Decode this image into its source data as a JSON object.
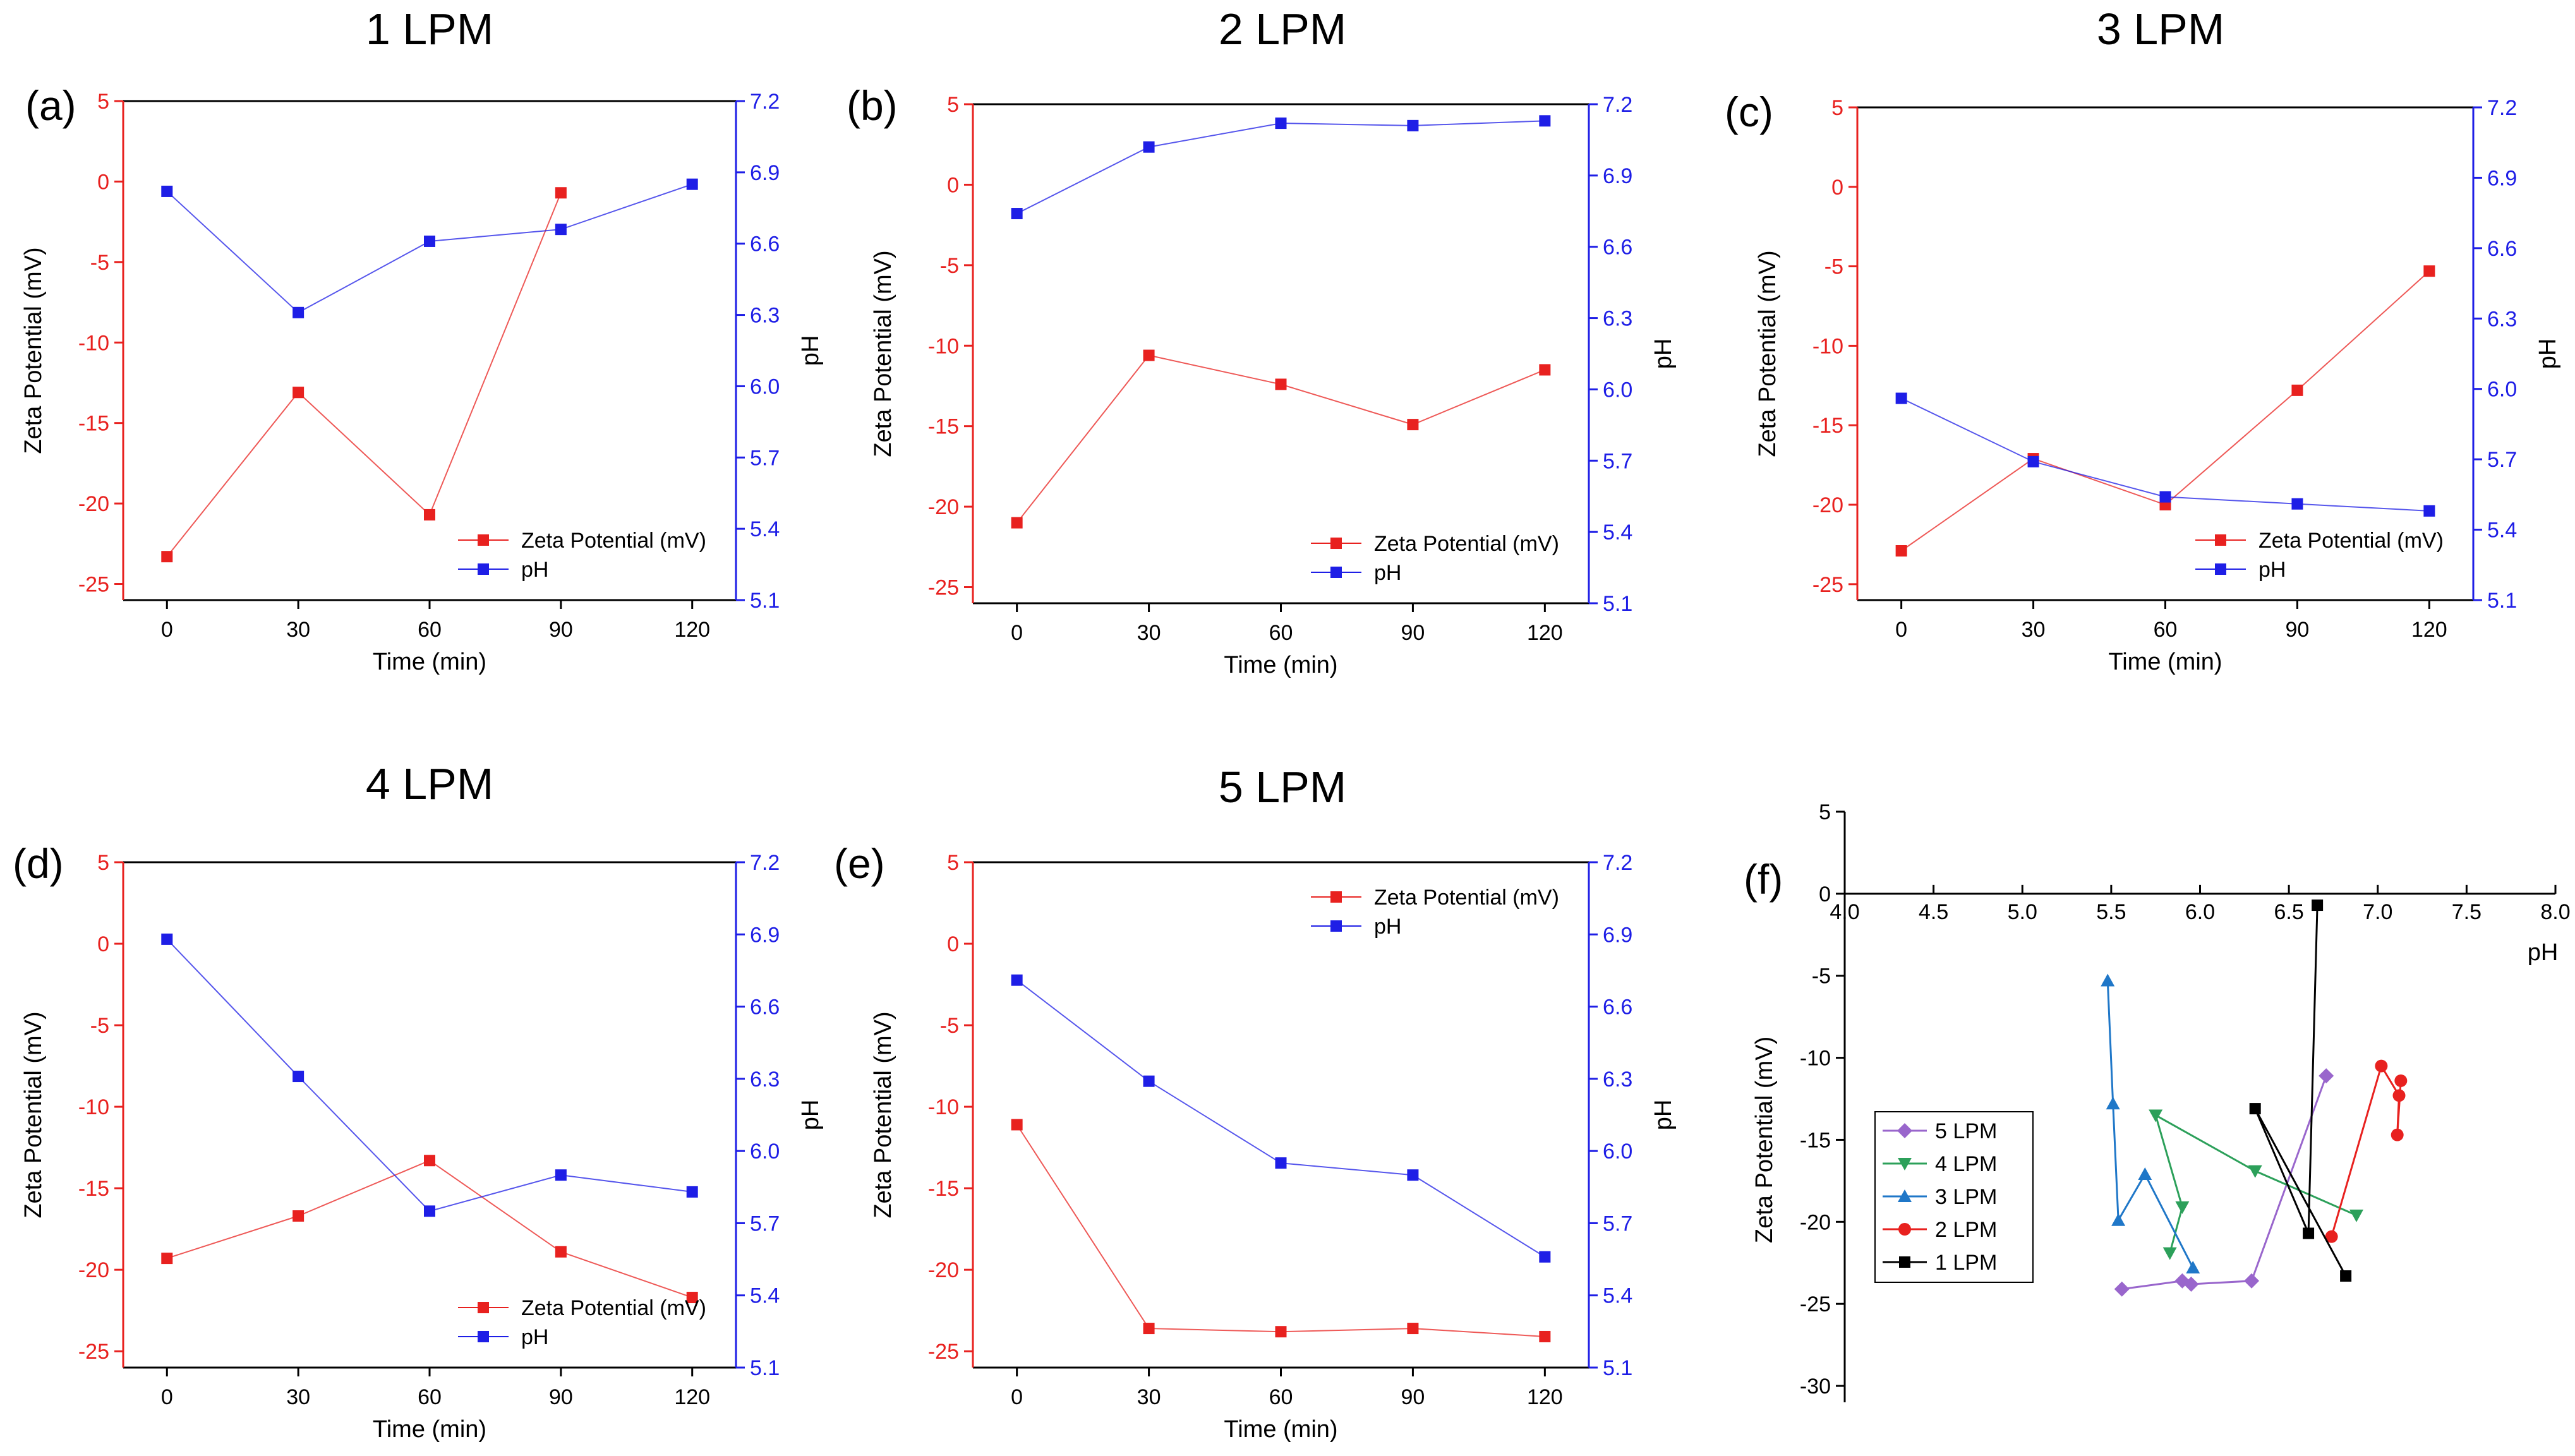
{
  "colors": {
    "zeta": "#e8211f",
    "ph": "#1e1ee6",
    "axis": "#000000",
    "lpm5": "#9966cc",
    "lpm4": "#2ca05a",
    "lpm3": "#1f77c8",
    "lpm2": "#e8211f",
    "lpm1": "#000000"
  },
  "chart_data": [
    {
      "type": "line",
      "panel_label": "(a)",
      "title": "1 LPM",
      "xlabel": "Time (min)",
      "ylabel": "Zeta Potential (mV)",
      "y2label": "pH",
      "x": [
        0,
        30,
        60,
        90,
        120
      ],
      "xlim": [
        -10,
        130
      ],
      "ylim": [
        -26,
        5
      ],
      "y2lim": [
        5.1,
        7.2
      ],
      "xticks": [
        0,
        30,
        60,
        90,
        120
      ],
      "yticks": [
        5,
        0,
        -5,
        -10,
        -15,
        -20,
        -25
      ],
      "y2ticks": [
        "7.2",
        "6.9",
        "6.6",
        "6.3",
        "6.0",
        "5.7",
        "5.4",
        "5.1"
      ],
      "series": [
        {
          "name": "Zeta Potential (mV)",
          "axis": "left",
          "values": [
            -23.3,
            -13.1,
            -20.7,
            -0.7,
            null
          ]
        },
        {
          "name": "pH",
          "axis": "right",
          "values": [
            6.82,
            6.31,
            6.61,
            6.66,
            6.85
          ]
        }
      ],
      "legend_position": "bottom-right"
    },
    {
      "type": "line",
      "panel_label": "(b)",
      "title": "2 LPM",
      "xlabel": "Time (min)",
      "ylabel": "Zeta Potential (mV)",
      "y2label": "pH",
      "x": [
        0,
        30,
        60,
        90,
        120
      ],
      "xlim": [
        -10,
        130
      ],
      "ylim": [
        -26,
        5
      ],
      "y2lim": [
        5.1,
        7.2
      ],
      "xticks": [
        0,
        30,
        60,
        90,
        120
      ],
      "yticks": [
        5,
        0,
        -5,
        -10,
        -15,
        -20,
        -25
      ],
      "y2ticks": [
        "7.2",
        "6.9",
        "6.6",
        "6.3",
        "6.0",
        "5.7",
        "5.4",
        "5.1"
      ],
      "series": [
        {
          "name": "Zeta Potential (mV)",
          "axis": "left",
          "values": [
            -21.0,
            -10.6,
            -12.4,
            -14.9,
            -11.5
          ]
        },
        {
          "name": "pH",
          "axis": "right",
          "values": [
            6.74,
            7.02,
            7.12,
            7.11,
            7.13
          ]
        }
      ],
      "legend_position": "bottom-right"
    },
    {
      "type": "line",
      "panel_label": "(c)",
      "title": "3 LPM",
      "xlabel": "Time (min)",
      "ylabel": "Zeta Potential (mV)",
      "y2label": "pH",
      "x": [
        0,
        30,
        60,
        90,
        120
      ],
      "xlim": [
        -10,
        130
      ],
      "ylim": [
        -26,
        5
      ],
      "y2lim": [
        5.1,
        7.2
      ],
      "xticks": [
        0,
        30,
        60,
        90,
        120
      ],
      "yticks": [
        5,
        0,
        -5,
        -10,
        -15,
        -20,
        -25
      ],
      "y2ticks": [
        "7.2",
        "6.9",
        "6.6",
        "6.3",
        "6.0",
        "5.7",
        "5.4",
        "5.1"
      ],
      "series": [
        {
          "name": "Zeta Potential (mV)",
          "axis": "left",
          "values": [
            -22.9,
            -17.1,
            -20.0,
            -12.8,
            -5.3
          ]
        },
        {
          "name": "pH",
          "axis": "right",
          "values": [
            5.96,
            5.69,
            5.54,
            5.51,
            5.48
          ]
        }
      ],
      "legend_position": "bottom-right"
    },
    {
      "type": "line",
      "panel_label": "(d)",
      "title": "4 LPM",
      "xlabel": "Time (min)",
      "ylabel": "Zeta Potential (mV)",
      "y2label": "pH",
      "x": [
        0,
        30,
        60,
        90,
        120
      ],
      "xlim": [
        -10,
        130
      ],
      "ylim": [
        -26,
        5
      ],
      "y2lim": [
        5.1,
        7.2
      ],
      "xticks": [
        0,
        30,
        60,
        90,
        120
      ],
      "yticks": [
        5,
        0,
        -5,
        -10,
        -15,
        -20,
        -25
      ],
      "y2ticks": [
        "7.2",
        "6.9",
        "6.6",
        "6.3",
        "6.0",
        "5.7",
        "5.4",
        "5.1"
      ],
      "series": [
        {
          "name": "Zeta Potential (mV)",
          "axis": "left",
          "values": [
            -19.3,
            -16.7,
            -13.3,
            -18.9,
            -21.7
          ]
        },
        {
          "name": "pH",
          "axis": "right",
          "values": [
            6.88,
            6.31,
            5.75,
            5.9,
            5.83
          ]
        }
      ],
      "legend_position": "bottom-right"
    },
    {
      "type": "line",
      "panel_label": "(e)",
      "title": "5 LPM",
      "xlabel": "Time (min)",
      "ylabel": "Zeta Potential (mV)",
      "y2label": "pH",
      "x": [
        0,
        30,
        60,
        90,
        120
      ],
      "xlim": [
        -10,
        130
      ],
      "ylim": [
        -26,
        5
      ],
      "y2lim": [
        5.1,
        7.2
      ],
      "xticks": [
        0,
        30,
        60,
        90,
        120
      ],
      "yticks": [
        5,
        0,
        -5,
        -10,
        -15,
        -20,
        -25
      ],
      "y2ticks": [
        "7.2",
        "6.9",
        "6.6",
        "6.3",
        "6.0",
        "5.7",
        "5.4",
        "5.1"
      ],
      "series": [
        {
          "name": "Zeta Potential (mV)",
          "axis": "left",
          "values": [
            -11.1,
            -23.6,
            -23.8,
            -23.6,
            -24.1
          ]
        },
        {
          "name": "pH",
          "axis": "right",
          "values": [
            6.71,
            6.29,
            5.95,
            5.9,
            5.56
          ]
        }
      ],
      "legend_position": "top-right"
    },
    {
      "type": "scatter",
      "panel_label": "(f)",
      "title": "",
      "xlabel": "pH",
      "ylabel": "Zeta Potential (mV)",
      "xlim": [
        4.0,
        8.0
      ],
      "ylim": [
        -31,
        5
      ],
      "xticks": [
        "4.0",
        "4.5",
        "5.0",
        "5.5",
        "6.0",
        "6.5",
        "7.0",
        "7.5",
        "8.0"
      ],
      "yticks": [
        5,
        0,
        -5,
        -10,
        -15,
        -20,
        -25,
        -30
      ],
      "series": [
        {
          "name": "5 LPM",
          "marker": "diamond",
          "x": [
            6.71,
            6.29,
            5.95,
            5.9,
            5.56
          ],
          "y": [
            -11.1,
            -23.6,
            -23.8,
            -23.6,
            -24.1
          ]
        },
        {
          "name": "4 LPM",
          "marker": "triangle-down",
          "x": [
            6.88,
            6.31,
            5.75,
            5.9,
            5.83
          ],
          "y": [
            -19.6,
            -16.9,
            -13.5,
            -19.1,
            -21.9
          ]
        },
        {
          "name": "3 LPM",
          "marker": "triangle-up",
          "x": [
            5.96,
            5.69,
            5.54,
            5.51,
            5.48
          ],
          "y": [
            -22.8,
            -17.1,
            -19.9,
            -12.8,
            -5.3
          ]
        },
        {
          "name": "2 LPM",
          "marker": "circle",
          "x": [
            6.74,
            7.02,
            7.12,
            7.11,
            7.13
          ],
          "y": [
            -20.9,
            -10.5,
            -12.3,
            -14.7,
            -11.4
          ]
        },
        {
          "name": "1 LPM",
          "marker": "square",
          "x": [
            6.82,
            6.31,
            6.61,
            6.66
          ],
          "y": [
            -23.3,
            -13.1,
            -20.7,
            -0.7
          ]
        }
      ],
      "legend_position": "bottom-left"
    }
  ]
}
